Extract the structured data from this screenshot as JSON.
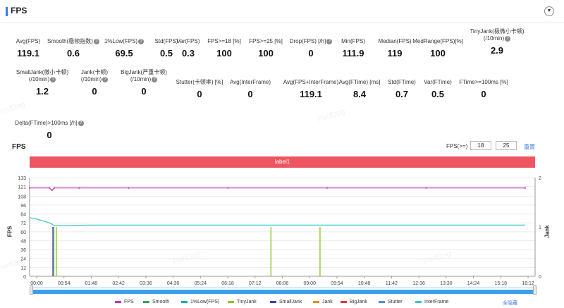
{
  "header": {
    "title": "FPS"
  },
  "stats": [
    {
      "label": "Avg(FPS)",
      "value": "119.1",
      "help": false
    },
    {
      "label": "Smooth(稳帧指数)",
      "value": "0.6",
      "help": true
    },
    {
      "label": "1%Low(FPS)",
      "value": "69.5",
      "help": true
    },
    {
      "label": "Std(FPS)",
      "value": "0.5",
      "help": false
    },
    {
      "label": "Var(FPS)",
      "value": "0.3",
      "help": false
    },
    {
      "label": "FPS>=18 [%]",
      "value": "100",
      "help": false
    },
    {
      "label": "FPS>=25 [%]",
      "value": "100",
      "help": false
    },
    {
      "label": "Drop(FPS) [/h]",
      "value": "0",
      "help": true
    },
    {
      "label": "Min(FPS)",
      "value": "111.9",
      "help": false
    },
    {
      "label": "Median(FPS)",
      "value": "119",
      "help": false
    },
    {
      "label": "MedRange(FPS)[%]",
      "value": "100",
      "help": false
    },
    {
      "label": "TinyJank(极微小卡顿)",
      "label2": "(/10min)",
      "value": "2.9",
      "help": true
    },
    {
      "label": "SmallJank(微小卡顿)",
      "label2": "(/10min)",
      "value": "1.2",
      "help": true
    },
    {
      "label": "Jank(卡顿)",
      "label2": "(/10min)",
      "value": "0",
      "help": true
    },
    {
      "label": "BigJank(严重卡顿)",
      "label2": "(/10min)",
      "value": "0",
      "help": true
    },
    {
      "label": "Stutter(卡顿率) [%]",
      "value": "0",
      "help": false
    },
    {
      "label": "Avg(InterFrame)",
      "value": "0",
      "help": false
    },
    {
      "label": "Avg(FPS+InterFrame)",
      "value": "119.1",
      "help": false
    },
    {
      "label": "Avg(FTime) [ms]",
      "value": "8.4",
      "help": false
    },
    {
      "label": "Std(FTime)",
      "value": "0.7",
      "help": false
    },
    {
      "label": "Var(FTime)",
      "value": "0.5",
      "help": false
    },
    {
      "label": "FTime>=100ms [%]",
      "value": "0",
      "help": false
    },
    {
      "label": "Delta(FTime)>100ms [/h]",
      "value": "0",
      "help": true
    }
  ],
  "watermark": "PerfDog",
  "chart": {
    "title": "FPS",
    "threshold_label": "FPS(>=)",
    "threshold_low": "18",
    "threshold_high": "25",
    "reset_label": "重置",
    "label_bar": "label1",
    "left_axis_name": "FPS",
    "right_axis_name": "Jank",
    "hide_all_label": "全隐藏"
  },
  "chart_data": {
    "type": "line",
    "x_ticks": [
      "00:00",
      "00:54",
      "01:48",
      "02:42",
      "03:36",
      "04:30",
      "05:24",
      "06:18",
      "07:12",
      "08:06",
      "09:00",
      "09:54",
      "10:48",
      "11:42",
      "12:36",
      "13:30",
      "14:24",
      "15:18",
      "16:12"
    ],
    "y_ticks": [
      0,
      12,
      24,
      36,
      48,
      60,
      72,
      84,
      96,
      108,
      121,
      133
    ],
    "y2_ticks": [
      0,
      1,
      2
    ],
    "ylim": [
      0,
      133
    ],
    "y2lim": [
      0,
      2
    ],
    "series": [
      {
        "name": "FPS",
        "color": "#c437b4",
        "axis": "left",
        "values": [
          [
            0,
            119
          ],
          [
            40,
            119
          ],
          [
            45,
            116
          ],
          [
            50,
            119
          ],
          [
            100,
            119
          ],
          [
            200,
            119
          ],
          [
            400,
            119
          ],
          [
            600,
            119
          ],
          [
            800,
            119
          ],
          [
            1000,
            119
          ]
        ]
      },
      {
        "name": "Smooth",
        "color": "#33a852",
        "axis": "left",
        "values": []
      },
      {
        "name": "1%Low(FPS)",
        "color": "#18b3a2",
        "axis": "left",
        "values": []
      },
      {
        "name": "TinyJank",
        "color": "#8ac926",
        "axis": "right",
        "events": [
          [
            49,
            1
          ],
          [
            54,
            1
          ],
          [
            487,
            1
          ],
          [
            586,
            1
          ]
        ]
      },
      {
        "name": "SmallJank",
        "color": "#3a45c4",
        "axis": "right",
        "events": [
          [
            47,
            1
          ]
        ]
      },
      {
        "name": "Jank",
        "color": "#f08a24",
        "axis": "right",
        "events": []
      },
      {
        "name": "BigJank",
        "color": "#e23b3b",
        "axis": "right",
        "events": []
      },
      {
        "name": "Stutter",
        "color": "#4d8fe0",
        "axis": "right",
        "values": []
      },
      {
        "name": "InterFrame",
        "color": "#37c8c8",
        "axis": "left",
        "values": [
          [
            0,
            79
          ],
          [
            10,
            78
          ],
          [
            20,
            76
          ],
          [
            30,
            74
          ],
          [
            40,
            72
          ],
          [
            46,
            70
          ],
          [
            50,
            68
          ],
          [
            60,
            68
          ],
          [
            120,
            69
          ],
          [
            200,
            69
          ],
          [
            400,
            69
          ],
          [
            600,
            69
          ],
          [
            800,
            69
          ],
          [
            1000,
            69
          ]
        ]
      }
    ]
  }
}
